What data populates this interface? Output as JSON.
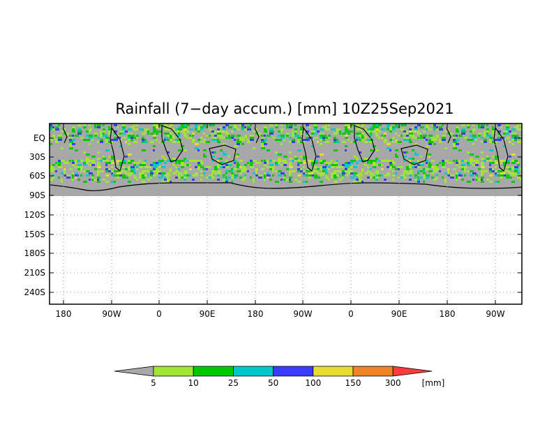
{
  "title": "Rainfall (7−day accum.) [mm] 10Z25Sep2021",
  "map": {
    "type": "lat-lon rainfall accumulation map",
    "longitude_ticks": [
      "180",
      "90W",
      "0",
      "90E",
      "180",
      "90W",
      "0",
      "90E",
      "180",
      "90W"
    ],
    "latitude_ticks": [
      "EQ",
      "30S",
      "60S",
      "90S",
      "120S",
      "150S",
      "180S",
      "210S",
      "240S"
    ],
    "grid": "dotted",
    "land_fill_color": "#a8a8a8",
    "coastline_color": "#000000"
  },
  "colorbar": {
    "unit": "[mm]",
    "boundaries": [
      "5",
      "10",
      "25",
      "50",
      "100",
      "150",
      "300"
    ],
    "colors": [
      "#a8a8a8",
      "#a0e632",
      "#00c800",
      "#00c8c8",
      "#3c3cff",
      "#e6dc32",
      "#f08228",
      "#fa3c3c"
    ]
  }
}
